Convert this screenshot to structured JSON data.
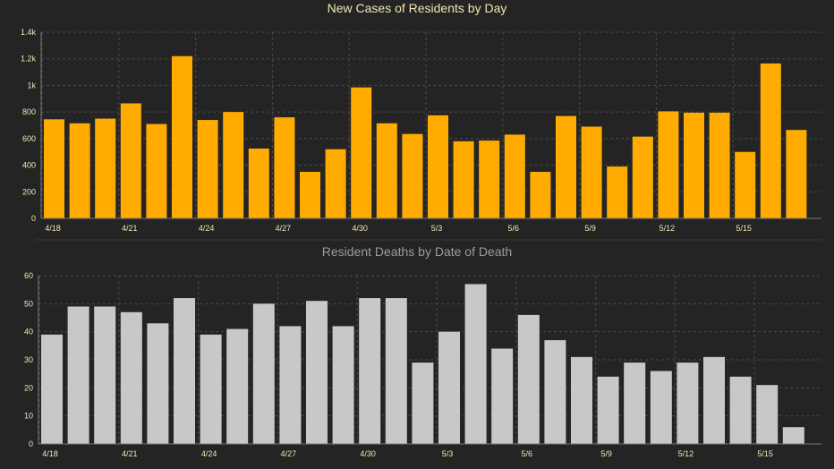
{
  "chart_data": [
    {
      "type": "bar",
      "title": "New Cases of Residents by Day",
      "xlabel": "",
      "ylabel": "",
      "ylim": [
        0,
        1400
      ],
      "ytick_values": [
        0,
        200,
        400,
        600,
        800,
        1000,
        1200,
        1400
      ],
      "ytick_labels": [
        "0",
        "200",
        "400",
        "600",
        "800",
        "1k",
        "1.2k",
        "1.4k"
      ],
      "categories": [
        "4/18",
        "4/19",
        "4/20",
        "4/21",
        "4/22",
        "4/23",
        "4/24",
        "4/25",
        "4/26",
        "4/27",
        "4/28",
        "4/29",
        "4/30",
        "5/1",
        "5/2",
        "5/3",
        "5/4",
        "5/5",
        "5/6",
        "5/7",
        "5/8",
        "5/9",
        "5/10",
        "5/11",
        "5/12",
        "5/13",
        "5/14",
        "5/15",
        "5/16",
        "5/17"
      ],
      "xtick_labels": [
        "4/18",
        "4/21",
        "4/24",
        "4/27",
        "4/30",
        "5/3",
        "5/6",
        "5/9",
        "5/12",
        "5/15"
      ],
      "values": [
        745,
        715,
        750,
        865,
        710,
        1220,
        740,
        800,
        525,
        760,
        350,
        520,
        985,
        715,
        635,
        775,
        580,
        585,
        630,
        350,
        770,
        690,
        390,
        615,
        805,
        795,
        795,
        500,
        1165,
        665
      ],
      "color": "#ffab00",
      "grid": true
    },
    {
      "type": "bar",
      "title": "Resident Deaths by Date of Death",
      "xlabel": "",
      "ylabel": "",
      "ylim": [
        0,
        60
      ],
      "ytick_values": [
        0,
        10,
        20,
        30,
        40,
        50,
        60
      ],
      "ytick_labels": [
        "0",
        "10",
        "20",
        "30",
        "40",
        "50",
        "60"
      ],
      "categories": [
        "4/18",
        "4/19",
        "4/20",
        "4/21",
        "4/22",
        "4/23",
        "4/24",
        "4/25",
        "4/26",
        "4/27",
        "4/28",
        "4/29",
        "4/30",
        "5/1",
        "5/2",
        "5/3",
        "5/4",
        "5/5",
        "5/6",
        "5/7",
        "5/8",
        "5/9",
        "5/10",
        "5/11",
        "5/12",
        "5/13",
        "5/14",
        "5/15",
        "5/16"
      ],
      "xtick_labels": [
        "4/18",
        "4/21",
        "4/24",
        "4/27",
        "4/30",
        "5/3",
        "5/6",
        "5/9",
        "5/12",
        "5/15"
      ],
      "values": [
        39,
        49,
        49,
        47,
        43,
        52,
        39,
        41,
        50,
        42,
        51,
        42,
        52,
        52,
        29,
        40,
        57,
        34,
        46,
        37,
        31,
        24,
        29,
        26,
        29,
        31,
        24,
        21,
        6
      ],
      "color": "#c8c8c8",
      "grid": true
    }
  ]
}
